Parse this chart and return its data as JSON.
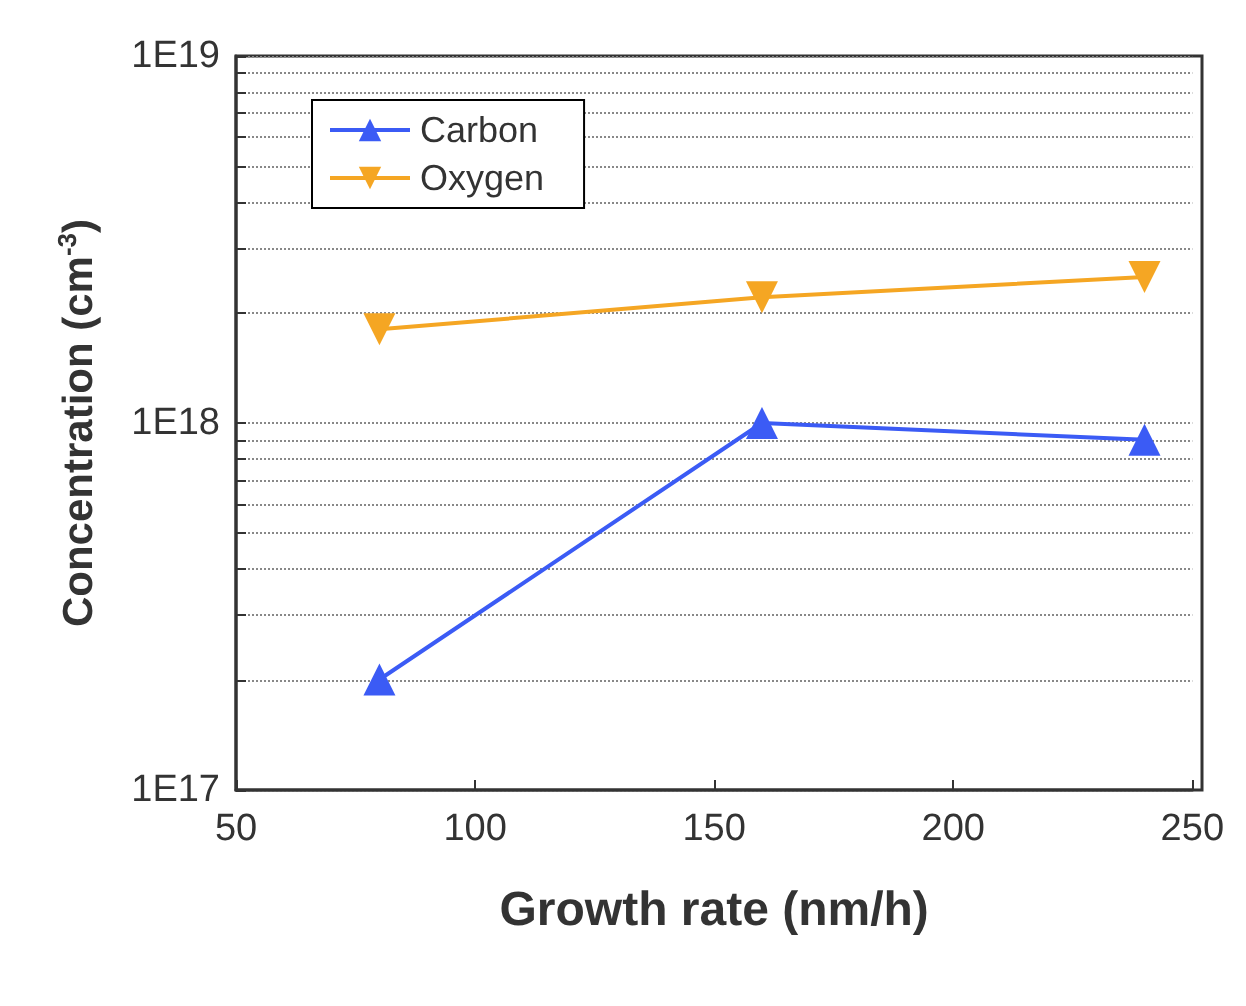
{
  "chart_data": {
    "type": "line",
    "xlabel": "Growth rate (nm/h)",
    "ylabel": "Concentration (cm$^{-3}$)",
    "x": [
      80,
      160,
      240
    ],
    "series": [
      {
        "name": "Carbon",
        "color": "#3b5bf5",
        "marker": "triangle",
        "values": [
          2e+17,
          1e+18,
          9e+17
        ]
      },
      {
        "name": "Oxygen",
        "color": "#f5a623",
        "marker": "triangle-down",
        "values": [
          1.8e+18,
          2.2e+18,
          2.5e+18
        ]
      }
    ],
    "xlim": [
      50,
      250
    ],
    "xticks": [
      50,
      100,
      150,
      200,
      250
    ],
    "ylim": [
      1e+17,
      1e+19
    ],
    "yticks": [
      {
        "value": 1e+17,
        "label": "1E17"
      },
      {
        "value": 1e+18,
        "label": "1E18"
      },
      {
        "value": 1e+19,
        "label": "1E19"
      }
    ],
    "log": "y",
    "grid": "y",
    "legend": "top left",
    "line_style": "solid"
  }
}
